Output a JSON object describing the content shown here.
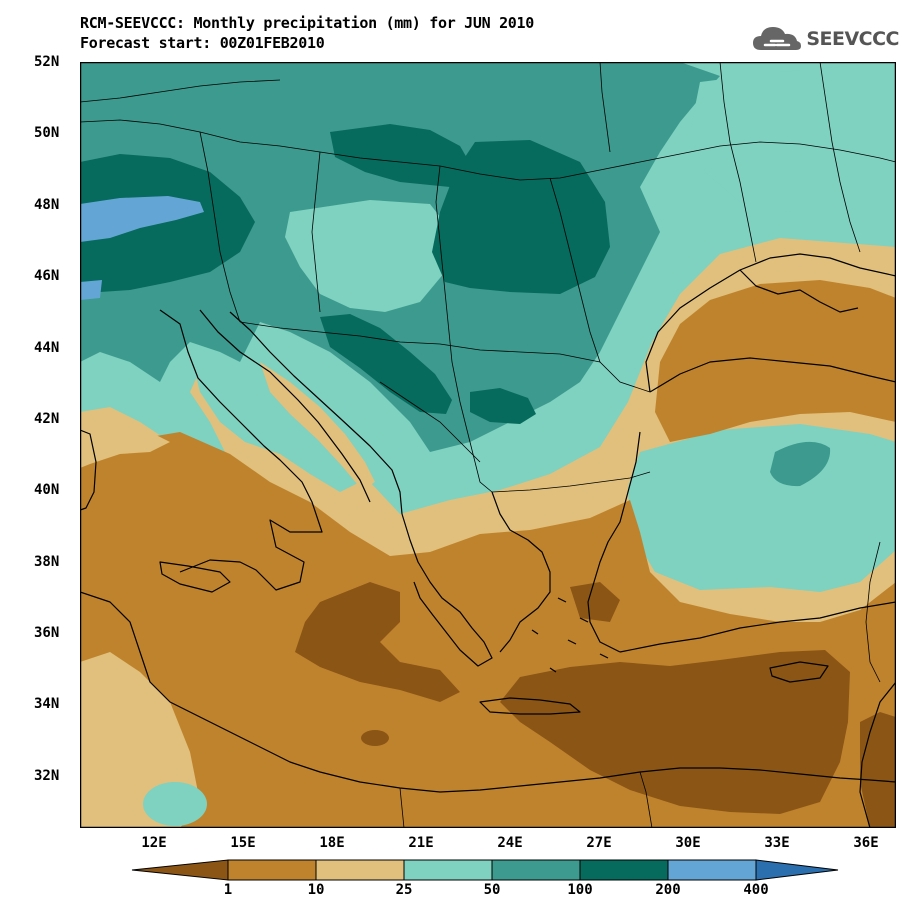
{
  "header": {
    "title_line_1": "RCM-SEEVCCC: Monthly precipitation (mm) for JUN 2010",
    "title_line_2": "Forecast start: 00Z01FEB2010"
  },
  "logo": {
    "text": "SEEVCCC",
    "icon": "cloud-icon"
  },
  "map": {
    "lat_labels": [
      "52N",
      "50N",
      "48N",
      "46N",
      "44N",
      "42N",
      "40N",
      "38N",
      "36N",
      "34N",
      "32N"
    ],
    "lon_labels": [
      "12E",
      "15E",
      "18E",
      "21E",
      "24E",
      "27E",
      "30E",
      "33E",
      "36E"
    ],
    "extent": {
      "lon": [
        9.8,
        37.3
      ],
      "lat": [
        30.6,
        52.0
      ]
    }
  },
  "colorbar": {
    "boundaries": [
      "1",
      "10",
      "25",
      "50",
      "100",
      "200",
      "400"
    ],
    "colors": [
      "#8b5515",
      "#c0832d",
      "#e0c07c",
      "#7fd1c0",
      "#3c9a8e",
      "#066a5c",
      "#63a6d6",
      "#2c6fae"
    ],
    "unit": "mm"
  }
}
